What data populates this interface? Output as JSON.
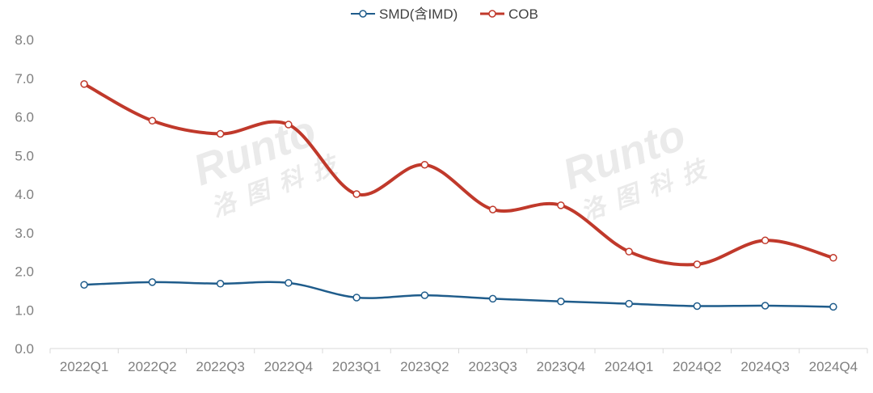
{
  "chart_data": {
    "type": "line",
    "title": "",
    "xlabel": "",
    "ylabel": "",
    "categories": [
      "2022Q1",
      "2022Q2",
      "2022Q3",
      "2022Q4",
      "2023Q1",
      "2023Q2",
      "2023Q3",
      "2023Q4",
      "2024Q1",
      "2024Q2",
      "2024Q3",
      "2024Q4"
    ],
    "y_ticks": [
      "0.0",
      "1.0",
      "2.0",
      "3.0",
      "4.0",
      "5.0",
      "6.0",
      "7.0",
      "8.0"
    ],
    "ylim": [
      0,
      8
    ],
    "grid": false,
    "legend_position": "top-center",
    "smooth": true,
    "series": [
      {
        "name": "SMD(含IMD)",
        "color": "#1f5c8b",
        "values": [
          1.65,
          1.72,
          1.68,
          1.7,
          1.32,
          1.38,
          1.29,
          1.22,
          1.16,
          1.1,
          1.11,
          1.08
        ]
      },
      {
        "name": "COB",
        "color": "#c0392b",
        "values": [
          6.85,
          5.9,
          5.56,
          5.8,
          4.0,
          4.76,
          3.6,
          3.71,
          2.51,
          2.18,
          2.8,
          2.35
        ]
      }
    ],
    "watermark": {
      "latin": "Runto",
      "cjk": [
        "洛",
        "图",
        "科",
        "技"
      ]
    }
  }
}
